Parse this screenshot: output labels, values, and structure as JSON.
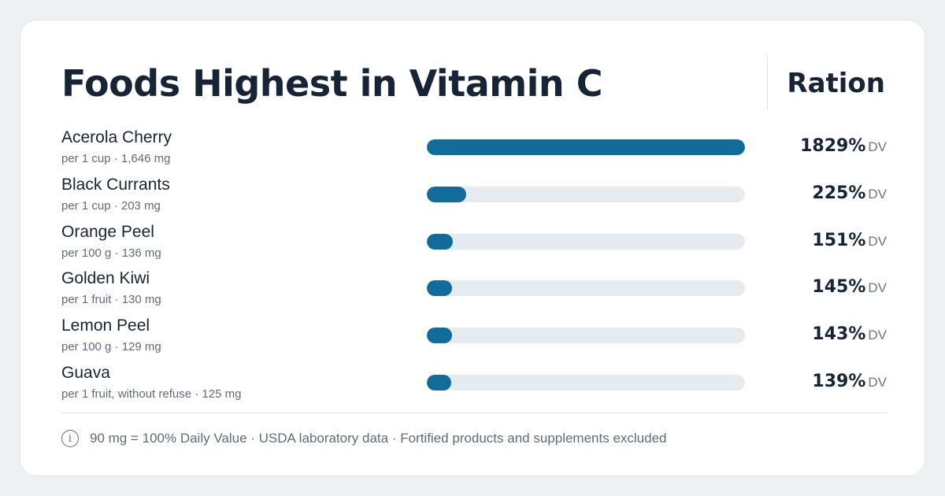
{
  "header": {
    "title": "Foods Highest in Vitamin C",
    "brand": "Ration"
  },
  "colors": {
    "bar_fill": "#116c9c",
    "bar_track": "#e6ebf0",
    "text_primary": "#172436",
    "text_secondary": "#5f6b78"
  },
  "chart_data": {
    "type": "bar",
    "orientation": "horizontal",
    "title": "Foods Highest in Vitamin C",
    "categories": [
      "Acerola Cherry",
      "Black Currants",
      "Orange Peel",
      "Golden Kiwi",
      "Lemon Peel",
      "Guava"
    ],
    "values": [
      1829,
      225,
      151,
      145,
      143,
      139
    ],
    "value_unit": "% DV",
    "xlim": [
      0,
      1829
    ],
    "rows": [
      {
        "name": "Acerola Cherry",
        "detail": "per 1 cup · 1,646 mg",
        "value": 1829,
        "value_label": "1829%",
        "unit": "DV"
      },
      {
        "name": "Black Currants",
        "detail": "per 1 cup · 203 mg",
        "value": 225,
        "value_label": "225%",
        "unit": "DV"
      },
      {
        "name": "Orange Peel",
        "detail": "per 100 g · 136 mg",
        "value": 151,
        "value_label": "151%",
        "unit": "DV"
      },
      {
        "name": "Golden Kiwi",
        "detail": "per 1 fruit · 130 mg",
        "value": 145,
        "value_label": "145%",
        "unit": "DV"
      },
      {
        "name": "Lemon Peel",
        "detail": "per 100 g · 129 mg",
        "value": 143,
        "value_label": "143%",
        "unit": "DV"
      },
      {
        "name": "Guava",
        "detail": "per 1 fruit, without refuse · 125 mg",
        "value": 139,
        "value_label": "139%",
        "unit": "DV"
      }
    ]
  },
  "footer": {
    "icon": "info-icon",
    "icon_glyph": "i",
    "note": "90 mg = 100% Daily Value · USDA laboratory data · Fortified products and supplements excluded"
  }
}
